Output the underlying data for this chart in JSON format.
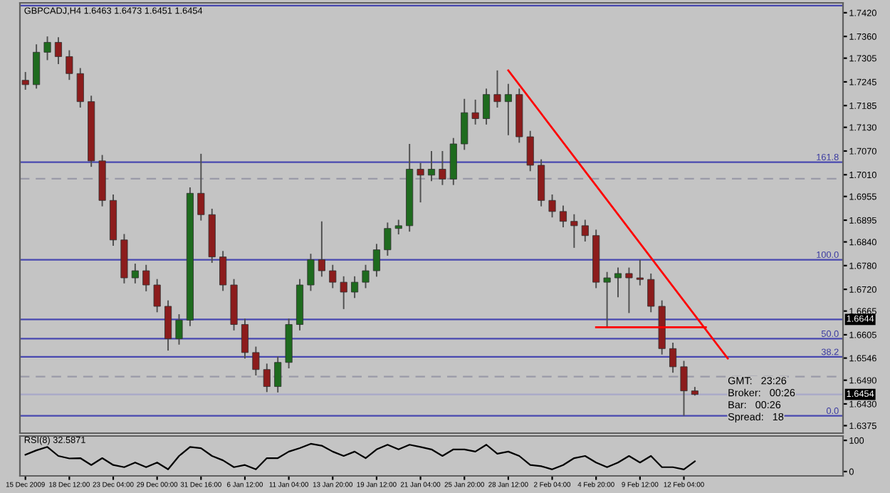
{
  "chart_data": [
    {
      "type": "candlestick",
      "title": "GBPCADJ,H4 1.6463 1.6473 1.6451 1.6454",
      "categories": [
        null,
        null,
        null,
        null,
        null,
        null,
        null,
        null,
        null,
        null,
        null,
        null,
        null,
        null,
        null,
        null,
        null,
        null,
        null,
        null,
        null,
        null,
        null,
        null,
        null,
        null,
        null,
        null,
        null,
        null,
        null,
        null,
        null,
        null,
        null,
        null,
        null,
        null,
        null,
        null,
        null,
        null,
        null,
        null,
        null,
        null,
        null,
        null,
        null,
        null,
        null,
        null,
        null,
        null,
        null,
        null,
        null,
        null,
        null,
        null,
        null,
        null,
        null,
        null,
        null,
        null,
        null,
        null,
        null,
        null,
        null,
        null,
        null,
        null,
        null
      ],
      "ohlc": [
        [
          1.7249,
          1.727,
          1.7225,
          1.7238
        ],
        [
          1.7238,
          1.734,
          1.7228,
          1.732
        ],
        [
          1.732,
          1.736,
          1.73,
          1.7345
        ],
        [
          1.7345,
          1.7358,
          1.729,
          1.7309
        ],
        [
          1.7309,
          1.7325,
          1.725,
          1.7266
        ],
        [
          1.7266,
          1.728,
          1.718,
          1.7195
        ],
        [
          1.7195,
          1.721,
          1.703,
          1.7045
        ],
        [
          1.7045,
          1.706,
          1.693,
          1.6945
        ],
        [
          1.6945,
          1.696,
          1.683,
          1.6845
        ],
        [
          1.6845,
          1.686,
          1.6735,
          1.6749
        ],
        [
          1.6749,
          1.6785,
          1.6735,
          1.6767
        ],
        [
          1.6767,
          1.6782,
          1.6715,
          1.6731
        ],
        [
          1.6731,
          1.6746,
          1.6662,
          1.6677
        ],
        [
          1.6677,
          1.6692,
          1.6565,
          1.6595
        ],
        [
          1.6595,
          1.6657,
          1.658,
          1.6642
        ],
        [
          1.6642,
          1.6978,
          1.6627,
          1.6963
        ],
        [
          1.6963,
          1.7063,
          1.6894,
          1.6909
        ],
        [
          1.6909,
          1.6924,
          1.6787,
          1.6802
        ],
        [
          1.6802,
          1.6817,
          1.6716,
          1.6731
        ],
        [
          1.6731,
          1.6746,
          1.6616,
          1.6631
        ],
        [
          1.6631,
          1.6646,
          1.6545,
          1.656
        ],
        [
          1.656,
          1.6575,
          1.6502,
          1.6517
        ],
        [
          1.6517,
          1.6532,
          1.646,
          1.6474
        ],
        [
          1.6474,
          1.655,
          1.6459,
          1.6535
        ],
        [
          1.6535,
          1.6646,
          1.652,
          1.6631
        ],
        [
          1.6631,
          1.6746,
          1.6616,
          1.6731
        ],
        [
          1.6731,
          1.681,
          1.6716,
          1.6795
        ],
        [
          1.6795,
          1.6892,
          1.6752,
          1.6767
        ],
        [
          1.6767,
          1.6782,
          1.6723,
          1.6738
        ],
        [
          1.6738,
          1.6753,
          1.667,
          1.6713
        ],
        [
          1.6713,
          1.6753,
          1.6698,
          1.6738
        ],
        [
          1.6738,
          1.6782,
          1.6723,
          1.6767
        ],
        [
          1.6767,
          1.6835,
          1.6752,
          1.682
        ],
        [
          1.682,
          1.6889,
          1.6805,
          1.6874
        ],
        [
          1.6874,
          1.6896,
          1.6859,
          1.6881
        ],
        [
          1.6881,
          1.7088,
          1.6866,
          1.7024
        ],
        [
          1.7024,
          1.704,
          1.694,
          1.7009
        ],
        [
          1.7009,
          1.707,
          1.6994,
          1.7024
        ],
        [
          1.7024,
          1.707,
          1.6984,
          1.6999
        ],
        [
          1.6999,
          1.7103,
          1.6984,
          1.7088
        ],
        [
          1.7088,
          1.7202,
          1.7073,
          1.7167
        ],
        [
          1.7167,
          1.72,
          1.7137,
          1.7152
        ],
        [
          1.7152,
          1.7228,
          1.7137,
          1.7213
        ],
        [
          1.7213,
          1.7274,
          1.718,
          1.7195
        ],
        [
          1.7195,
          1.724,
          1.711,
          1.7213
        ],
        [
          1.7213,
          1.7228,
          1.7091,
          1.7106
        ],
        [
          1.7106,
          1.7121,
          1.7019,
          1.7034
        ],
        [
          1.7034,
          1.7049,
          1.693,
          1.6945
        ],
        [
          1.6945,
          1.696,
          1.6902,
          1.6917
        ],
        [
          1.6917,
          1.6932,
          1.6877,
          1.6892
        ],
        [
          1.6892,
          1.691,
          1.6825,
          1.6881
        ],
        [
          1.6881,
          1.6896,
          1.6841,
          1.6856
        ],
        [
          1.6856,
          1.6871,
          1.6723,
          1.6738
        ],
        [
          1.6738,
          1.6764,
          1.6624,
          1.6749
        ],
        [
          1.6749,
          1.6775,
          1.67,
          1.676
        ],
        [
          1.676,
          1.6775,
          1.666,
          1.6749
        ],
        [
          1.6749,
          1.6795,
          1.673,
          1.6745
        ],
        [
          1.6745,
          1.676,
          1.6662,
          1.6677
        ],
        [
          1.6677,
          1.6692,
          1.6555,
          1.657
        ],
        [
          1.657,
          1.6585,
          1.6509,
          1.6524
        ],
        [
          1.6524,
          1.6539,
          1.64,
          1.6463
        ],
        [
          1.6463,
          1.6473,
          1.6451,
          1.6454
        ],
        null,
        null,
        null,
        null,
        null,
        null,
        null,
        null,
        null,
        null,
        null,
        null,
        null
      ],
      "colors": [
        "#8c1c1c",
        "#1e6b1e",
        "#1e6b1e",
        "#8c1c1c",
        "#8c1c1c",
        "#8c1c1c",
        "#8c1c1c",
        "#8c1c1c",
        "#8c1c1c",
        "#8c1c1c",
        "#1e6b1e",
        "#8c1c1c",
        "#8c1c1c",
        "#8c1c1c",
        "#1e6b1e",
        "#1e6b1e",
        "#8c1c1c",
        "#8c1c1c",
        "#8c1c1c",
        "#8c1c1c",
        "#8c1c1c",
        "#8c1c1c",
        "#8c1c1c",
        "#1e6b1e",
        "#1e6b1e",
        "#1e6b1e",
        "#1e6b1e",
        "#8c1c1c",
        "#8c1c1c",
        "#8c1c1c",
        "#1e6b1e",
        "#1e6b1e",
        "#1e6b1e",
        "#1e6b1e",
        "#1e6b1e",
        "#1e6b1e",
        "#8c1c1c",
        "#1e6b1e",
        "#8c1c1c",
        "#1e6b1e",
        "#1e6b1e",
        "#8c1c1c",
        "#1e6b1e",
        "#8c1c1c",
        "#1e6b1e",
        "#8c1c1c",
        "#8c1c1c",
        "#8c1c1c",
        "#8c1c1c",
        "#8c1c1c",
        "#8c1c1c",
        "#8c1c1c",
        "#8c1c1c",
        "#1e6b1e",
        "#1e6b1e",
        "#8c1c1c",
        "#8c1c1c",
        "#8c1c1c",
        "#8c1c1c",
        "#8c1c1c",
        "#8c1c1c",
        "#8c1c1c",
        null,
        null,
        null,
        null,
        null,
        null,
        null,
        null,
        null,
        null,
        null,
        null,
        null
      ],
      "series": [
        {
          "type": "line",
          "values": [
            null,
            null,
            null,
            null,
            null,
            null,
            null,
            null,
            null,
            null,
            null,
            null,
            null,
            null,
            null,
            null,
            null,
            null,
            null,
            null,
            null,
            null,
            null,
            null,
            null,
            null,
            null,
            null,
            null,
            null,
            null,
            null,
            null,
            null,
            null,
            null,
            null,
            null,
            null,
            null,
            null,
            null,
            null,
            null,
            1.7274,
            null,
            null,
            null,
            null,
            null,
            null,
            null,
            null,
            null,
            null,
            null,
            null,
            null,
            null,
            null,
            null,
            null,
            null,
            null,
            1.6545,
            null,
            null,
            null,
            null,
            null,
            null,
            null,
            null,
            null,
            null
          ],
          "color": "#ff0000"
        },
        {
          "type": "line",
          "values": [
            null,
            null,
            null,
            null,
            null,
            null,
            null,
            null,
            null,
            null,
            null,
            null,
            null,
            null,
            null,
            null,
            null,
            null,
            null,
            null,
            null,
            null,
            null,
            null,
            null,
            null,
            null,
            null,
            null,
            null,
            null,
            null,
            null,
            null,
            null,
            null,
            null,
            null,
            null,
            null,
            null,
            null,
            null,
            null,
            null,
            null,
            null,
            null,
            null,
            null,
            null,
            null,
            1.6624,
            null,
            null,
            null,
            null,
            null,
            null,
            null,
            null,
            null,
            1.6624,
            null,
            null,
            null,
            null,
            null,
            null,
            null,
            null,
            null,
            null,
            null,
            null
          ],
          "color": "#ff0000"
        }
      ],
      "ylim": [
        1.6356,
        1.7445
      ],
      "yticks": [
        {
          "value": 1.742,
          "label": "1.7420"
        },
        {
          "value": 1.736,
          "label": "1.7360"
        },
        {
          "value": 1.7305,
          "label": "1.7305"
        },
        {
          "value": 1.7245,
          "label": "1.7245"
        },
        {
          "value": 1.7185,
          "label": "1.7185"
        },
        {
          "value": 1.713,
          "label": "1.7130"
        },
        {
          "value": 1.707,
          "label": "1.7070"
        },
        {
          "value": 1.701,
          "label": "1.7010"
        },
        {
          "value": 1.6955,
          "label": "1.6955"
        },
        {
          "value": 1.6895,
          "label": "1.6895"
        },
        {
          "value": 1.684,
          "label": "1.6840"
        },
        {
          "value": 1.678,
          "label": "1.6780"
        },
        {
          "value": 1.672,
          "label": "1.6720"
        },
        {
          "value": 1.6665,
          "label": "1.6665"
        },
        {
          "value": 1.6605,
          "label": "1.6605"
        },
        {
          "value": 1.6546,
          "label": "1.6546"
        },
        {
          "value": 1.649,
          "label": "1.6490"
        },
        {
          "value": 1.643,
          "label": "1.6430"
        },
        {
          "value": 1.6375,
          "label": "1.6375"
        }
      ],
      "ref_lines": [
        {
          "axis": "y",
          "value": 1.7438,
          "color": "#4848b0",
          "line_style": "solid"
        },
        {
          "axis": "y",
          "value": 1.7042,
          "color": "#4848b0",
          "line_style": "solid"
        },
        {
          "axis": "y",
          "value": 1.6795,
          "color": "#4848b0",
          "line_style": "solid"
        },
        {
          "axis": "y",
          "value": 1.6644,
          "label": "1.6644",
          "color": "#4848b0",
          "line_style": "solid"
        },
        {
          "axis": "y",
          "value": 1.6595,
          "color": "#4848b0",
          "line_style": "solid"
        },
        {
          "axis": "y",
          "value": 1.6549,
          "color": "#4848b0",
          "line_style": "solid"
        },
        {
          "axis": "y",
          "value": 1.64,
          "color": "#4848b0",
          "line_style": "solid"
        },
        {
          "axis": "y",
          "value": 1.7,
          "color": "#9a9aa8",
          "line_style": "dashed"
        },
        {
          "axis": "y",
          "value": 1.6499,
          "color": "#9a9aa8",
          "line_style": "dashed"
        },
        {
          "axis": "y",
          "value": 1.6454,
          "label": "1.6454",
          "color": "#a8a8c8",
          "line_style": "solid"
        }
      ],
      "annotations": [
        "GMT:   23:26",
        "Broker:   00:26",
        "Bar:   00:26",
        "Spread:   18",
        {
          "text": "161.8",
          "y": 1.7042
        },
        {
          "text": "100.0",
          "y": 1.6795
        },
        {
          "text": "50.0",
          "y": 1.6595
        },
        {
          "text": "38.2",
          "y": 1.6549
        },
        {
          "text": "0.0",
          "y": 1.64
        }
      ],
      "tick_labels": "y",
      "grid": false,
      "legend": false
    },
    {
      "type": "line",
      "title": "RSI(8) 32.5871",
      "categories": [
        "15 Dec 2009",
        null,
        null,
        null,
        "18 Dec 12:00",
        null,
        null,
        null,
        "23 Dec 04:00",
        null,
        null,
        null,
        "29 Dec 00:00",
        null,
        null,
        null,
        "31 Dec 16:00",
        null,
        null,
        null,
        "6 Jan 12:00",
        null,
        null,
        null,
        "11 Jan 04:00",
        null,
        null,
        null,
        "13 Jan 20:00",
        null,
        null,
        null,
        "19 Jan 12:00",
        null,
        null,
        null,
        "21 Jan 04:00",
        null,
        null,
        null,
        "25 Jan 20:00",
        null,
        null,
        null,
        "28 Jan 12:00",
        null,
        null,
        null,
        "2 Feb 04:00",
        null,
        null,
        null,
        "4 Feb 20:00",
        null,
        null,
        null,
        "9 Feb 12:00",
        null,
        null,
        null,
        "12 Feb 04:00",
        null,
        null,
        null,
        null,
        null,
        null,
        null,
        null,
        null,
        null,
        null,
        null,
        null,
        null
      ],
      "series": [
        {
          "color": "#000000",
          "values": [
            54,
            68,
            79,
            50,
            42,
            43,
            21,
            43,
            21,
            14,
            29,
            14,
            29,
            7,
            50,
            79,
            75,
            50,
            36,
            14,
            21,
            7,
            43,
            43,
            64,
            75,
            89,
            83,
            64,
            50,
            64,
            43,
            71,
            86,
            71,
            86,
            79,
            71,
            50,
            71,
            71,
            64,
            86,
            57,
            64,
            50,
            21,
            17,
            7,
            21,
            43,
            50,
            29,
            14,
            29,
            50,
            29,
            50,
            14,
            14,
            7,
            33,
            null,
            null,
            null,
            null,
            null,
            null,
            null,
            null,
            null,
            null,
            null,
            null,
            null
          ]
        }
      ],
      "ylim": [
        -14,
        114
      ],
      "yticks": [
        0,
        100
      ],
      "grid": false,
      "legend": false
    }
  ]
}
